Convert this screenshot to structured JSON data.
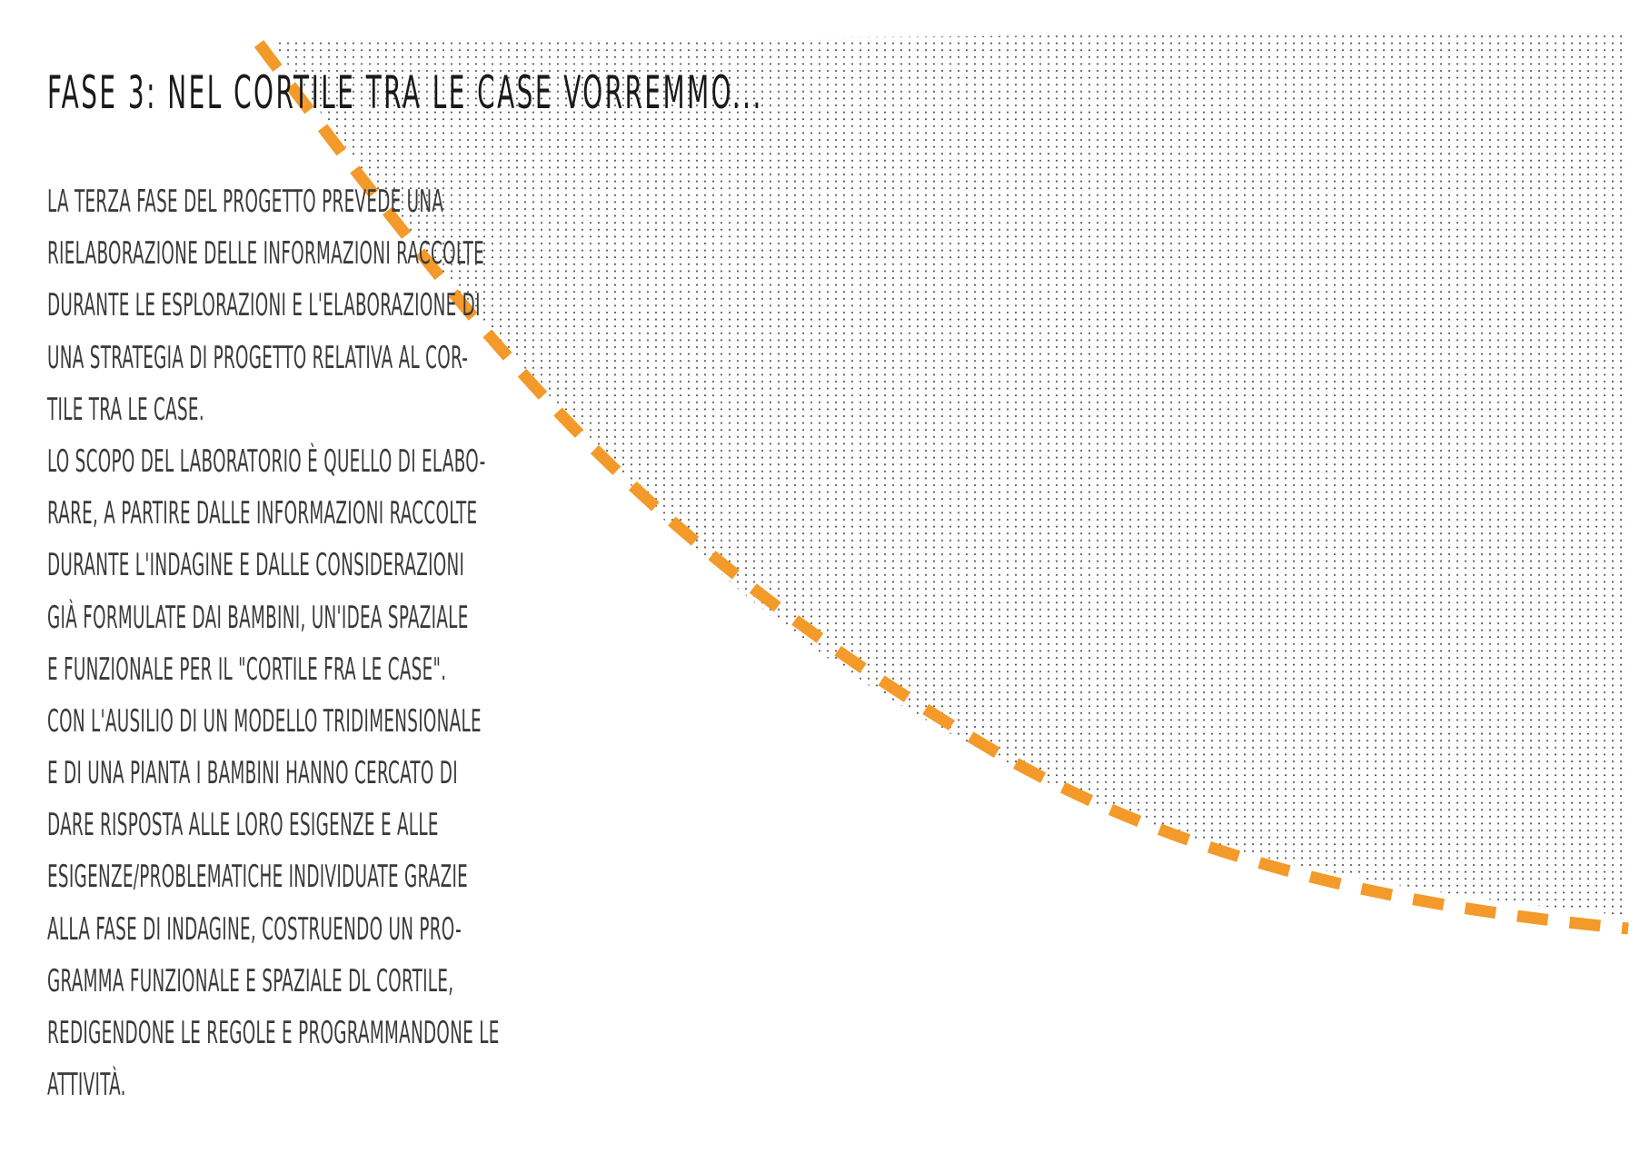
{
  "colors": {
    "background": "#ffffff",
    "text": "#2f2f2f",
    "accent_orange": "#f39a2a",
    "dots": "#5a5a5a"
  },
  "title": "FASE 3: NEL CORTILE TRA LE CASE VORREMMO...",
  "body_lines": [
    "LA TERZA FASE DEL PROGETTO PREVEDE UNA",
    "RIELABORAZIONE DELLE INFORMAZIONI RACCOLTE",
    "DURANTE LE ESPLORAZIONI E L'ELABORAZIONE DI",
    "UNA STRATEGIA DI PROGETTO RELATIVA AL COR-",
    "TILE TRA LE CASE.",
    "LO SCOPO DEL LABORATORIO È QUELLO DI ELABO-",
    "RARE, A PARTIRE DALLE INFORMAZIONI RACCOLTE",
    "DURANTE L'INDAGINE E DALLE CONSIDERAZIONI",
    "GIÀ FORMULATE DAI BAMBINI, UN'IDEA SPAZIALE",
    "E FUNZIONALE PER IL \"CORTILE FRA LE CASE\".",
    "CON L'AUSILIO DI UN MODELLO TRIDIMENSIONALE",
    "E DI UNA PIANTA I BAMBINI HANNO CERCATO DI",
    "DARE RISPOSTA ALLE LORO ESIGENZE E ALLE",
    "ESIGENZE/PROBLEMATICHE INDIVIDUATE GRAZIE",
    "ALLA FASE DI INDAGINE, COSTRUENDO UN PRO-",
    "GRAMMA FUNZIONALE E SPAZIALE DL CORTILE,",
    "REDIGENDONE LE REGOLE E PROGRAMMANDONE LE",
    "ATTIVITÀ."
  ]
}
